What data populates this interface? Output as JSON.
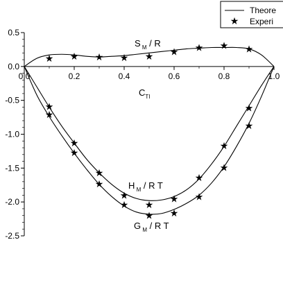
{
  "chart_data": {
    "type": "line",
    "title": "",
    "xlabel": "C",
    "xlabel_sub": "TI",
    "ylabel": "",
    "xlim": [
      0,
      1
    ],
    "ylim": [
      -2.5,
      0.5
    ],
    "x_ticks": [
      0,
      0.2,
      0.4,
      0.6,
      0.8,
      1
    ],
    "x_tick_labels": [
      "0.0",
      "0.2",
      "0.4",
      "0.6",
      "0.8",
      "1.0"
    ],
    "y_ticks": [
      0.5,
      0,
      -0.5,
      -1,
      -1.5,
      -2,
      -2.5
    ],
    "y_tick_labels": [
      "0.5",
      "0.0",
      "-0.5",
      "-1.0",
      "-1.5",
      "-2.0",
      "-2.5"
    ],
    "legend": {
      "placement": "top-right",
      "entries": [
        {
          "label": "Theore",
          "marker": "line"
        },
        {
          "label": "Experi",
          "marker": "star"
        }
      ]
    },
    "series": [
      {
        "label_main": "S",
        "label_sub": "M",
        "label_rest": "/ R",
        "theory": {
          "x": [
            0,
            0.05,
            0.1,
            0.15,
            0.2,
            0.25,
            0.3,
            0.35,
            0.4,
            0.45,
            0.5,
            0.55,
            0.6,
            0.65,
            0.7,
            0.75,
            0.8,
            0.85,
            0.9,
            0.95,
            1.0
          ],
          "y": [
            0,
            0.12,
            0.17,
            0.18,
            0.17,
            0.15,
            0.14,
            0.15,
            0.16,
            0.18,
            0.2,
            0.22,
            0.24,
            0.26,
            0.27,
            0.28,
            0.28,
            0.28,
            0.26,
            0.17,
            0
          ]
        },
        "experiment": {
          "x": [
            0.1,
            0.2,
            0.3,
            0.4,
            0.5,
            0.6,
            0.7,
            0.8,
            0.9
          ],
          "y": [
            0.12,
            0.15,
            0.14,
            0.13,
            0.15,
            0.22,
            0.28,
            0.31,
            0.26
          ]
        }
      },
      {
        "label_main": "H",
        "label_sub": "M",
        "label_rest": "/ R T",
        "theory": {
          "x": [
            0,
            0.05,
            0.1,
            0.15,
            0.2,
            0.25,
            0.3,
            0.35,
            0.4,
            0.45,
            0.5,
            0.55,
            0.6,
            0.65,
            0.7,
            0.75,
            0.8,
            0.85,
            0.9,
            0.95,
            1.0
          ],
          "y": [
            0,
            -0.3,
            -0.6,
            -0.88,
            -1.13,
            -1.37,
            -1.57,
            -1.74,
            -1.87,
            -1.95,
            -1.98,
            -1.97,
            -1.92,
            -1.82,
            -1.66,
            -1.44,
            -1.18,
            -0.88,
            -0.58,
            -0.28,
            0
          ]
        },
        "experiment": {
          "x": [
            0.1,
            0.2,
            0.3,
            0.4,
            0.5,
            0.6,
            0.7,
            0.8,
            0.9
          ],
          "y": [
            -0.59,
            -1.13,
            -1.57,
            -1.9,
            -2.04,
            -1.95,
            -1.64,
            -1.17,
            -0.61
          ]
        }
      },
      {
        "label_main": "G",
        "label_sub": "M",
        "label_rest": "/ R T",
        "theory": {
          "x": [
            0,
            0.05,
            0.1,
            0.15,
            0.2,
            0.25,
            0.3,
            0.35,
            0.4,
            0.45,
            0.5,
            0.55,
            0.6,
            0.65,
            0.7,
            0.75,
            0.8,
            0.85,
            0.9,
            0.95,
            1.0
          ],
          "y": [
            0,
            -0.42,
            -0.74,
            -1.02,
            -1.28,
            -1.52,
            -1.74,
            -1.92,
            -2.06,
            -2.15,
            -2.18,
            -2.17,
            -2.11,
            -2.02,
            -1.9,
            -1.72,
            -1.48,
            -1.18,
            -0.84,
            -0.44,
            0
          ]
        },
        "experiment": {
          "x": [
            0.1,
            0.2,
            0.3,
            0.4,
            0.5,
            0.6,
            0.7,
            0.8,
            0.9
          ],
          "y": [
            -0.71,
            -1.27,
            -1.73,
            -2.04,
            -2.2,
            -2.16,
            -1.92,
            -1.49,
            -0.87
          ]
        }
      }
    ]
  }
}
